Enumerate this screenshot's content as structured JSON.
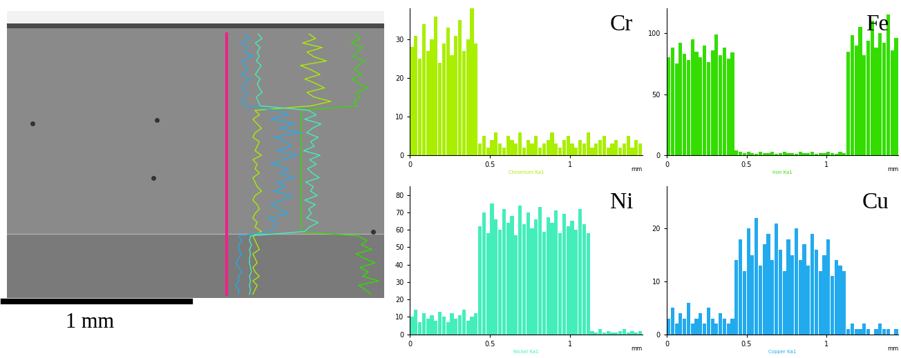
{
  "image": {
    "scale_bar_label": "1 mm"
  },
  "chart_data": [
    {
      "type": "bar",
      "title": "Cr",
      "x_label": "Chromium Ka1",
      "x_unit": "mm",
      "color": "#aaee00",
      "x": [
        0,
        0.025,
        0.05,
        0.075,
        0.1,
        0.125,
        0.15,
        0.175,
        0.2,
        0.225,
        0.25,
        0.275,
        0.3,
        0.325,
        0.35,
        0.375,
        0.4,
        0.425,
        0.45,
        0.475,
        0.5,
        0.525,
        0.55,
        0.575,
        0.6,
        0.625,
        0.65,
        0.675,
        0.7,
        0.725,
        0.75,
        0.775,
        0.8,
        0.825,
        0.85,
        0.875,
        0.9,
        0.925,
        0.95,
        0.975,
        1,
        1.025,
        1.05,
        1.075,
        1.1,
        1.125,
        1.15,
        1.175,
        1.2,
        1.225,
        1.25,
        1.275,
        1.3,
        1.325,
        1.35,
        1.375,
        1.4,
        1.425,
        1.45
      ],
      "values": [
        28,
        31,
        25,
        34,
        27,
        30,
        36,
        24,
        29,
        33,
        26,
        31,
        35,
        27,
        30,
        38,
        29,
        3,
        5,
        2,
        4,
        6,
        3,
        2,
        5,
        4,
        3,
        6,
        2,
        4,
        3,
        5,
        2,
        3,
        4,
        6,
        3,
        2,
        4,
        5,
        3,
        2,
        4,
        3,
        6,
        2,
        3,
        4,
        5,
        2,
        3,
        4,
        2,
        3,
        5,
        2,
        4,
        3,
        2
      ],
      "xlim": [
        0,
        1.45
      ],
      "xticks": [
        0,
        0.5,
        1
      ],
      "ylim": [
        0,
        38
      ],
      "yticks": [
        0,
        10,
        20,
        30
      ],
      "grid": false
    },
    {
      "type": "bar",
      "title": "Fe",
      "x_label": "Iron Ka1",
      "x_unit": "mm",
      "color": "#33dd00",
      "x": [
        0,
        0.025,
        0.05,
        0.075,
        0.1,
        0.125,
        0.15,
        0.175,
        0.2,
        0.225,
        0.25,
        0.275,
        0.3,
        0.325,
        0.35,
        0.375,
        0.4,
        0.425,
        0.45,
        0.475,
        0.5,
        0.525,
        0.55,
        0.575,
        0.6,
        0.625,
        0.65,
        0.675,
        0.7,
        0.725,
        0.75,
        0.775,
        0.8,
        0.825,
        0.85,
        0.875,
        0.9,
        0.925,
        0.95,
        0.975,
        1,
        1.025,
        1.05,
        1.075,
        1.1,
        1.125,
        1.15,
        1.175,
        1.2,
        1.225,
        1.25,
        1.275,
        1.3,
        1.325,
        1.35,
        1.375,
        1.4,
        1.425,
        1.45
      ],
      "values": [
        80,
        88,
        75,
        92,
        83,
        78,
        95,
        85,
        80,
        90,
        76,
        86,
        99,
        82,
        88,
        79,
        84,
        4,
        3,
        2,
        3,
        2,
        1,
        3,
        2,
        2,
        3,
        1,
        2,
        3,
        2,
        2,
        1,
        3,
        2,
        2,
        3,
        1,
        2,
        2,
        3,
        2,
        1,
        3,
        2,
        85,
        98,
        90,
        105,
        82,
        94,
        110,
        88,
        100,
        92,
        115,
        86,
        96,
        104
      ],
      "xlim": [
        0,
        1.45
      ],
      "xticks": [
        0,
        0.5,
        1
      ],
      "ylim": [
        0,
        120
      ],
      "yticks": [
        0,
        50,
        100
      ],
      "grid": false
    },
    {
      "type": "bar",
      "title": "Ni",
      "x_label": "Nickel Ka1",
      "x_unit": "mm",
      "color": "#44eebb",
      "x": [
        0,
        0.025,
        0.05,
        0.075,
        0.1,
        0.125,
        0.15,
        0.175,
        0.2,
        0.225,
        0.25,
        0.275,
        0.3,
        0.325,
        0.35,
        0.375,
        0.4,
        0.425,
        0.45,
        0.475,
        0.5,
        0.525,
        0.55,
        0.575,
        0.6,
        0.625,
        0.65,
        0.675,
        0.7,
        0.725,
        0.75,
        0.775,
        0.8,
        0.825,
        0.85,
        0.875,
        0.9,
        0.925,
        0.95,
        0.975,
        1,
        1.025,
        1.05,
        1.075,
        1.1,
        1.125,
        1.15,
        1.175,
        1.2,
        1.225,
        1.25,
        1.275,
        1.3,
        1.325,
        1.35,
        1.375,
        1.4,
        1.425,
        1.45
      ],
      "values": [
        10,
        14,
        7,
        12,
        9,
        11,
        8,
        13,
        10,
        7,
        12,
        9,
        11,
        14,
        8,
        10,
        12,
        62,
        70,
        58,
        75,
        66,
        60,
        72,
        64,
        68,
        57,
        74,
        63,
        70,
        61,
        66,
        73,
        59,
        67,
        64,
        71,
        58,
        69,
        62,
        65,
        60,
        72,
        63,
        58,
        2,
        1,
        3,
        1,
        2,
        1,
        1,
        2,
        3,
        1,
        2,
        1,
        2,
        1
      ],
      "xlim": [
        0,
        1.45
      ],
      "xticks": [
        0,
        0.5,
        1
      ],
      "ylim": [
        0,
        85
      ],
      "yticks": [
        0,
        10,
        20,
        30,
        40,
        50,
        60,
        70,
        80
      ],
      "grid": false
    },
    {
      "type": "bar",
      "title": "Cu",
      "x_label": "Copper Ka1",
      "x_unit": "mm",
      "color": "#22aaee",
      "x": [
        0,
        0.025,
        0.05,
        0.075,
        0.1,
        0.125,
        0.15,
        0.175,
        0.2,
        0.225,
        0.25,
        0.275,
        0.3,
        0.325,
        0.35,
        0.375,
        0.4,
        0.425,
        0.45,
        0.475,
        0.5,
        0.525,
        0.55,
        0.575,
        0.6,
        0.625,
        0.65,
        0.675,
        0.7,
        0.725,
        0.75,
        0.775,
        0.8,
        0.825,
        0.85,
        0.875,
        0.9,
        0.925,
        0.95,
        0.975,
        1,
        1.025,
        1.05,
        1.075,
        1.1,
        1.125,
        1.15,
        1.175,
        1.2,
        1.225,
        1.25,
        1.275,
        1.3,
        1.325,
        1.35,
        1.375,
        1.4,
        1.425,
        1.45
      ],
      "values": [
        3,
        5,
        2,
        4,
        3,
        6,
        2,
        3,
        4,
        2,
        5,
        3,
        2,
        4,
        3,
        2,
        3,
        14,
        18,
        12,
        20,
        15,
        22,
        13,
        17,
        19,
        14,
        21,
        16,
        12,
        18,
        15,
        20,
        14,
        17,
        13,
        19,
        16,
        12,
        15,
        18,
        11,
        14,
        13,
        12,
        1,
        2,
        1,
        1,
        2,
        1,
        0,
        1,
        2,
        1,
        1,
        0,
        1,
        1
      ],
      "xlim": [
        0,
        1.45
      ],
      "xticks": [
        0,
        0.5,
        1
      ],
      "ylim": [
        0,
        28
      ],
      "yticks": [
        0,
        10,
        20
      ],
      "grid": false
    }
  ]
}
